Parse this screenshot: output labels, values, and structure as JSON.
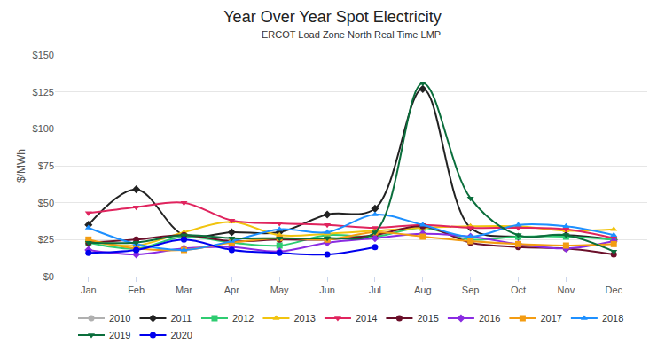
{
  "chart_data": {
    "type": "line",
    "title": "Year Over Year Spot Electricity",
    "subtitle": "ERCOT Load Zone North Real Time LMP",
    "y_label": "$/MWh",
    "categories": [
      "Jan",
      "Feb",
      "Mar",
      "Apr",
      "May",
      "Jun",
      "Jul",
      "Aug",
      "Sep",
      "Oct",
      "Nov",
      "Dec"
    ],
    "ylim": [
      0,
      150
    ],
    "yticks": [
      {
        "value": 0,
        "label": "$0"
      },
      {
        "value": 25,
        "label": "$25"
      },
      {
        "value": 50,
        "label": "$50"
      },
      {
        "value": 75,
        "label": "$75"
      },
      {
        "value": 100,
        "label": "$100"
      },
      {
        "value": 125,
        "label": "$125"
      },
      {
        "value": 150,
        "label": "$150"
      }
    ],
    "grid": true,
    "legend": "bottom",
    "line_style": "spline",
    "series": [
      {
        "name": "2010",
        "color": "#b0b0b0",
        "marker": "circle",
        "values": [
          null,
          null,
          null,
          null,
          null,
          null,
          null,
          null,
          null,
          null,
          null,
          null
        ]
      },
      {
        "name": "2011",
        "color": "#222222",
        "marker": "diamond",
        "values": [
          35,
          59,
          28,
          30,
          30,
          42,
          46,
          127,
          33,
          27,
          28,
          25
        ]
      },
      {
        "name": "2012",
        "color": "#2ecc71",
        "marker": "square",
        "values": [
          23,
          19,
          27,
          23,
          21,
          28,
          27,
          33,
          25,
          27,
          27,
          25
        ]
      },
      {
        "name": "2013",
        "color": "#f1c40f",
        "marker": "triangle-up",
        "values": [
          24,
          21,
          30,
          37,
          28,
          29,
          31,
          33,
          34,
          34,
          31,
          32
        ]
      },
      {
        "name": "2014",
        "color": "#e0245e",
        "marker": "triangle-down",
        "values": [
          43,
          47,
          50,
          38,
          36,
          35,
          33,
          35,
          33,
          33,
          32,
          26
        ]
      },
      {
        "name": "2015",
        "color": "#6b0f2a",
        "marker": "circle",
        "values": [
          23,
          25,
          28,
          24,
          25,
          25,
          28,
          34,
          23,
          20,
          19,
          15
        ]
      },
      {
        "name": "2016",
        "color": "#8a2be2",
        "marker": "diamond",
        "values": [
          18,
          15,
          19,
          20,
          17,
          23,
          26,
          29,
          27,
          22,
          19,
          24
        ]
      },
      {
        "name": "2017",
        "color": "#f39c12",
        "marker": "square",
        "values": [
          25,
          19,
          18,
          23,
          26,
          25,
          30,
          27,
          24,
          22,
          21,
          22
        ]
      },
      {
        "name": "2018",
        "color": "#1e90ff",
        "marker": "triangle-up",
        "values": [
          33,
          22,
          18,
          24,
          32,
          30,
          42,
          35,
          27,
          35,
          34,
          28
        ]
      },
      {
        "name": "2019",
        "color": "#0b6e3c",
        "marker": "triangle-down",
        "values": [
          23,
          23,
          28,
          26,
          26,
          26,
          30,
          131,
          53,
          28,
          28,
          17
        ]
      },
      {
        "name": "2020",
        "color": "#0000ee",
        "marker": "circle",
        "values": [
          16,
          18,
          25,
          18,
          16,
          15,
          20,
          null,
          null,
          null,
          null,
          null
        ]
      }
    ]
  }
}
